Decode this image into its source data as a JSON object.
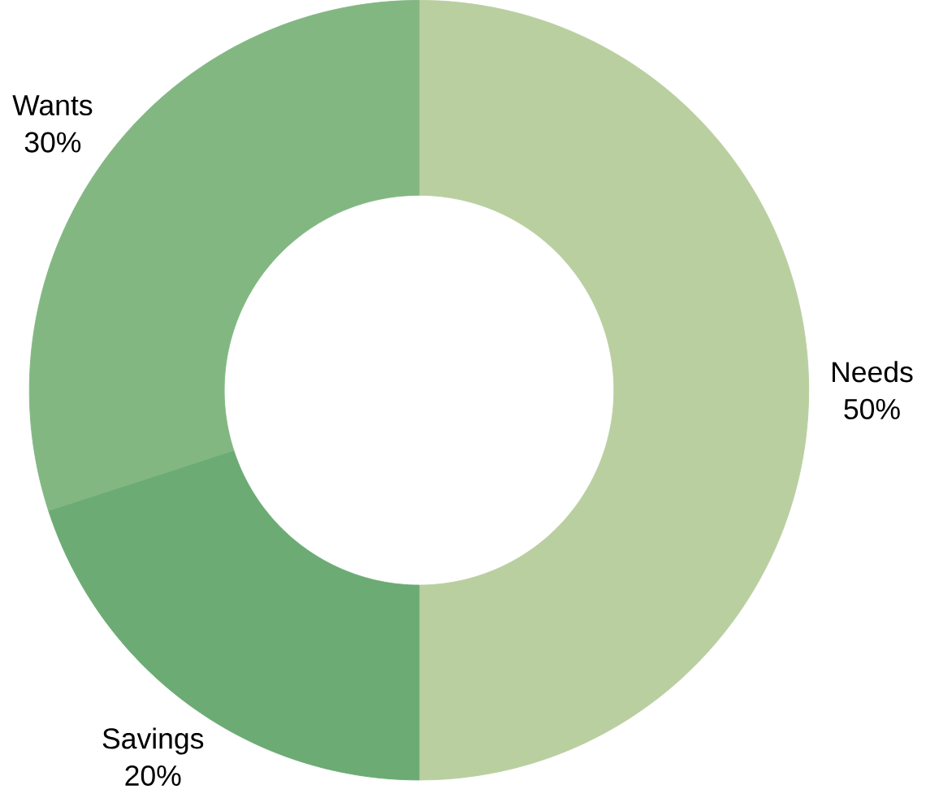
{
  "chart_data": {
    "type": "donut",
    "categories": [
      "Needs",
      "Savings",
      "Wants"
    ],
    "values": [
      50,
      20,
      30
    ],
    "value_labels": [
      "50%",
      "20%",
      "30%"
    ],
    "colors": [
      "#b9cfa0",
      "#6cab74",
      "#82b782"
    ]
  }
}
